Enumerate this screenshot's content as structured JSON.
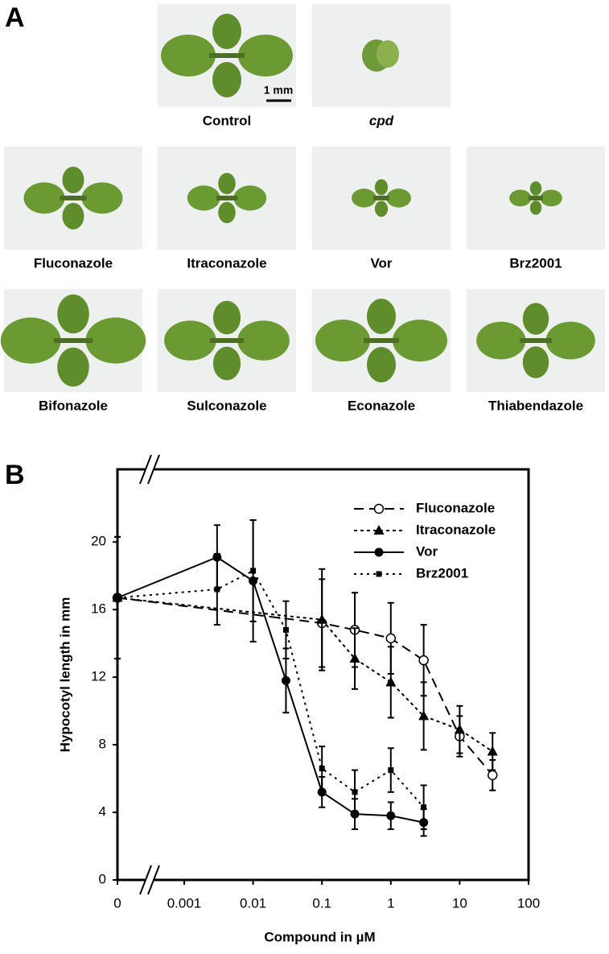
{
  "panel_a": {
    "label": "A",
    "scale_bar": "1 mm",
    "photos": [
      {
        "label": "Control"
      },
      {
        "label": "cpd"
      },
      {
        "label": "Fluconazole"
      },
      {
        "label": "Itraconazole"
      },
      {
        "label": "Vor"
      },
      {
        "label": "Brz2001"
      },
      {
        "label": "Bifonazole"
      },
      {
        "label": "Sulconazole"
      },
      {
        "label": "Econazole"
      },
      {
        "label": "Thiabendazole"
      }
    ]
  },
  "panel_b": {
    "label": "B"
  },
  "chart_data": {
    "type": "line",
    "x_label": "Compound in µM",
    "y_label": "Hypocotyl length in mm",
    "xscale": "log",
    "xlim": [
      0,
      100
    ],
    "xticks": [
      0,
      0.001,
      0.01,
      0.1,
      1,
      10,
      100
    ],
    "ylim": [
      0,
      24.3
    ],
    "yticks": [
      0,
      4,
      8,
      12,
      16,
      20
    ],
    "grid": false,
    "legend": "upper right",
    "series": [
      {
        "name": "Fluconazole",
        "color": "#000000",
        "marker": "circle-open",
        "dash": "12,7",
        "x": [
          0,
          0.1,
          0.3,
          1,
          3,
          10,
          30
        ],
        "values": [
          16.7,
          15.2,
          14.8,
          14.3,
          13.0,
          8.5,
          6.2
        ],
        "errors": [
          3.6,
          2.6,
          2.2,
          2.1,
          2.1,
          1.2,
          0.9
        ]
      },
      {
        "name": "Itraconazole",
        "color": "#000000",
        "marker": "triangle",
        "dash": "4,4",
        "x": [
          0,
          0.1,
          0.3,
          1,
          3,
          10,
          30
        ],
        "values": [
          16.7,
          15.4,
          13.1,
          11.7,
          9.7,
          8.9,
          7.6
        ],
        "errors": [
          3.6,
          3.0,
          1.8,
          2.1,
          2.0,
          1.4,
          1.1
        ]
      },
      {
        "name": "Vor",
        "color": "#000000",
        "marker": "circle",
        "dash": "",
        "x": [
          0,
          0.003,
          0.01,
          0.03,
          0.1,
          0.3,
          1,
          3
        ],
        "values": [
          16.7,
          19.1,
          17.7,
          11.8,
          5.2,
          3.9,
          3.8,
          3.4
        ],
        "errors": [
          3.6,
          1.9,
          3.6,
          1.9,
          0.9,
          0.9,
          0.8,
          0.8
        ]
      },
      {
        "name": "Brz2001",
        "color": "#000000",
        "marker": "square",
        "dash": "3,5",
        "x": [
          0,
          0.003,
          0.01,
          0.03,
          0.1,
          0.3,
          1,
          3
        ],
        "values": [
          16.7,
          17.2,
          18.3,
          14.8,
          6.6,
          5.2,
          6.5,
          4.3
        ],
        "errors": [
          3.6,
          2.1,
          3.0,
          1.7,
          1.3,
          1.3,
          1.3,
          1.3
        ]
      }
    ]
  }
}
